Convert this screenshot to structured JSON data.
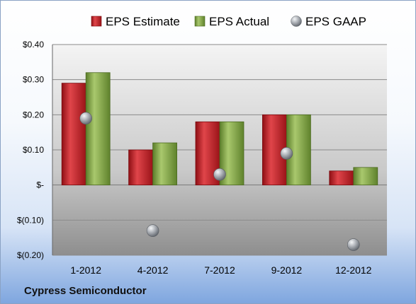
{
  "company": "Cypress Semiconductor",
  "colors": {
    "estimate": "#c8232a",
    "actual": "#8bb04b",
    "gaap": "#9aa0a8",
    "plot_top": "#f4f4f4",
    "plot_bottom": "#8e8e8e"
  },
  "chart_data": {
    "type": "bar",
    "title": "",
    "xlabel": "",
    "ylabel": "",
    "categories": [
      "1-2012",
      "4-2012",
      "7-2012",
      "9-2012",
      "12-2012"
    ],
    "series": [
      {
        "name": "EPS Estimate",
        "type": "bar",
        "values": [
          0.29,
          0.1,
          0.18,
          0.2,
          0.04
        ]
      },
      {
        "name": "EPS Actual",
        "type": "bar",
        "values": [
          0.32,
          0.12,
          0.18,
          0.2,
          0.05
        ]
      },
      {
        "name": "EPS GAAP",
        "type": "scatter",
        "values": [
          0.19,
          -0.13,
          0.03,
          0.09,
          -0.17
        ]
      }
    ],
    "ylim": [
      -0.2,
      0.4
    ],
    "yticks": [
      0.4,
      0.3,
      0.2,
      0.1,
      0.0,
      -0.1,
      -0.2
    ],
    "ytick_labels": [
      "$0.40",
      "$0.30",
      "$0.20",
      "$0.10",
      "$-",
      "$(0.10)",
      "$(0.20)"
    ],
    "grid": true,
    "legend_position": "top"
  }
}
